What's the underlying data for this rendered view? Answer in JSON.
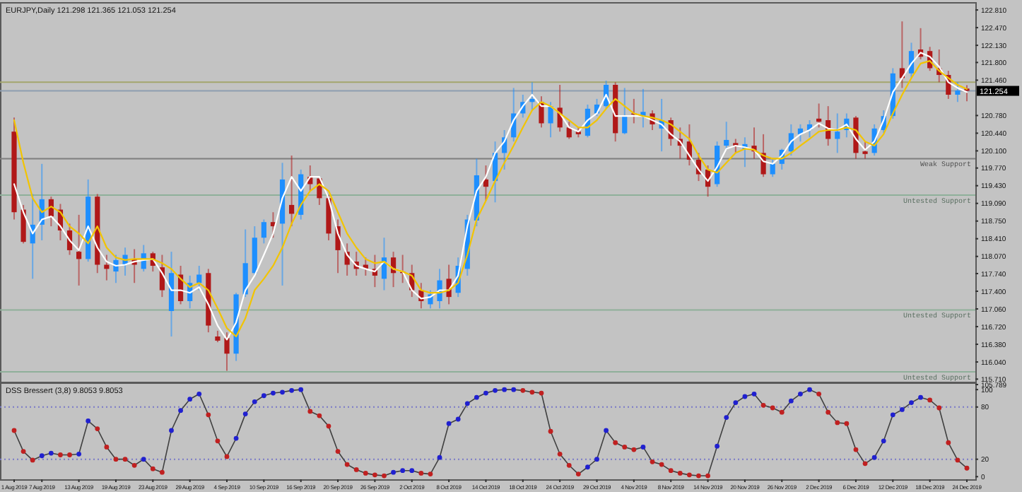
{
  "chart_data": [
    {
      "type": "candlestick",
      "title": "EURJPY,Daily 121.298 121.365 121.053 121.254",
      "tick_labels": "y",
      "categories": [
        null,
        null,
        null,
        null,
        null,
        null,
        null,
        null,
        null,
        null,
        null,
        null,
        null,
        null,
        null,
        null,
        null,
        null,
        null,
        null,
        null,
        null,
        null,
        null,
        null,
        null,
        null,
        null,
        null,
        null,
        null,
        null,
        null,
        null,
        null,
        null,
        null,
        null,
        null,
        null,
        null,
        null,
        null,
        null,
        null,
        null,
        null,
        null,
        null,
        null,
        null,
        null,
        null,
        null,
        null,
        null,
        null,
        null,
        null,
        null,
        null,
        null,
        null,
        null,
        null,
        null,
        null,
        null,
        null,
        null,
        null,
        null,
        null,
        null,
        null,
        null,
        null,
        null,
        null,
        null,
        null,
        null,
        null,
        null,
        null,
        null,
        null,
        null,
        null,
        null,
        null,
        null,
        null,
        null,
        null,
        null,
        null,
        null,
        null,
        null,
        null,
        null,
        null,
        null
      ],
      "ohlc": [
        [
          120.47,
          120.74,
          118.78,
          118.92
        ],
        [
          118.97,
          119.06,
          118.32,
          118.35
        ],
        [
          118.32,
          119.27,
          117.64,
          118.68
        ],
        [
          118.68,
          119.85,
          118.38,
          119.17
        ],
        [
          119.17,
          119.22,
          118.65,
          118.84
        ],
        [
          118.97,
          119.08,
          118.38,
          118.57
        ],
        [
          118.57,
          118.7,
          118.1,
          118.19
        ],
        [
          118.16,
          118.87,
          117.51,
          118.02
        ],
        [
          118.02,
          119.55,
          117.97,
          119.22
        ],
        [
          119.22,
          119.27,
          117.75,
          117.91
        ],
        [
          117.91,
          118.1,
          117.61,
          117.83
        ],
        [
          117.78,
          118.1,
          117.56,
          118.0
        ],
        [
          117.91,
          118.24,
          117.7,
          118.1
        ],
        [
          118.02,
          118.21,
          117.56,
          117.91
        ],
        [
          117.83,
          118.29,
          117.78,
          118.13
        ],
        [
          118.13,
          118.16,
          117.78,
          117.89
        ],
        [
          117.86,
          118.1,
          117.29,
          117.42
        ],
        [
          117.02,
          118.16,
          116.53,
          117.75
        ],
        [
          117.72,
          117.89,
          117.15,
          117.21
        ],
        [
          117.21,
          117.7,
          117.07,
          117.56
        ],
        [
          117.56,
          117.89,
          117.42,
          117.72
        ],
        [
          117.75,
          117.83,
          116.61,
          116.74
        ],
        [
          116.53,
          116.64,
          116.42,
          116.45
        ],
        [
          116.5,
          116.61,
          115.87,
          116.2
        ],
        [
          116.2,
          117.37,
          116.06,
          117.34
        ],
        [
          117.34,
          118.59,
          117.29,
          117.94
        ],
        [
          117.75,
          118.65,
          117.7,
          118.43
        ],
        [
          118.43,
          118.78,
          118.32,
          118.73
        ],
        [
          118.73,
          118.92,
          118.43,
          118.65
        ],
        [
          118.7,
          119.87,
          117.51,
          119.55
        ],
        [
          119.06,
          120.01,
          118.65,
          118.89
        ],
        [
          118.87,
          119.74,
          118.78,
          119.65
        ],
        [
          119.6,
          119.82,
          119.33,
          119.46
        ],
        [
          119.57,
          119.6,
          119.06,
          119.19
        ],
        [
          119.19,
          119.25,
          118.38,
          118.51
        ],
        [
          118.65,
          118.78,
          117.75,
          118.19
        ],
        [
          118.16,
          118.32,
          117.7,
          117.91
        ],
        [
          117.97,
          118.16,
          117.7,
          117.83
        ],
        [
          117.91,
          118.05,
          117.7,
          117.83
        ],
        [
          117.83,
          118.1,
          117.48,
          117.7
        ],
        [
          117.64,
          118.43,
          117.42,
          118.05
        ],
        [
          118.05,
          118.16,
          117.48,
          117.75
        ],
        [
          117.78,
          118.1,
          117.56,
          117.75
        ],
        [
          117.75,
          117.91,
          117.29,
          117.42
        ],
        [
          117.42,
          117.56,
          117.07,
          117.21
        ],
        [
          117.15,
          117.42,
          117.07,
          117.34
        ],
        [
          117.21,
          117.83,
          117.07,
          117.61
        ],
        [
          117.64,
          117.91,
          117.15,
          117.29
        ],
        [
          117.37,
          118.05,
          117.29,
          117.89
        ],
        [
          117.83,
          118.87,
          117.7,
          118.78
        ],
        [
          118.76,
          119.95,
          118.65,
          119.63
        ],
        [
          119.55,
          119.82,
          119.14,
          119.41
        ],
        [
          119.52,
          120.28,
          119.11,
          120.06
        ],
        [
          120.06,
          120.5,
          119.74,
          120.36
        ],
        [
          120.36,
          121.31,
          120.28,
          120.82
        ],
        [
          120.82,
          121.18,
          120.74,
          121.04
        ],
        [
          121.04,
          121.42,
          120.88,
          121.1
        ],
        [
          121.04,
          121.15,
          120.55,
          120.63
        ],
        [
          120.63,
          121.04,
          120.36,
          120.96
        ],
        [
          120.93,
          121.37,
          120.47,
          120.55
        ],
        [
          120.55,
          120.66,
          120.33,
          120.36
        ],
        [
          120.47,
          120.55,
          120.36,
          120.42
        ],
        [
          120.39,
          120.99,
          120.36,
          120.91
        ],
        [
          120.82,
          121.1,
          120.77,
          120.99
        ],
        [
          120.96,
          121.45,
          120.91,
          121.37
        ],
        [
          121.37,
          121.42,
          120.28,
          120.44
        ],
        [
          120.44,
          121.31,
          120.42,
          120.77
        ],
        [
          120.82,
          121.1,
          120.63,
          120.8
        ],
        [
          120.77,
          121.29,
          120.55,
          120.85
        ],
        [
          120.82,
          120.88,
          120.5,
          120.61
        ],
        [
          120.53,
          121.1,
          120.09,
          120.69
        ],
        [
          120.69,
          120.74,
          120.2,
          120.33
        ],
        [
          120.33,
          120.55,
          119.95,
          120.2
        ],
        [
          120.28,
          120.61,
          119.82,
          119.93
        ],
        [
          119.93,
          120.06,
          119.52,
          119.65
        ],
        [
          119.74,
          119.82,
          119.22,
          119.41
        ],
        [
          119.46,
          120.28,
          119.41,
          120.2
        ],
        [
          120.2,
          120.66,
          120.12,
          120.31
        ],
        [
          120.25,
          120.33,
          120.06,
          120.2
        ],
        [
          120.14,
          120.36,
          119.79,
          120.23
        ],
        [
          120.2,
          120.55,
          119.95,
          120.09
        ],
        [
          120.06,
          120.42,
          119.6,
          119.65
        ],
        [
          119.65,
          119.93,
          119.6,
          119.85
        ],
        [
          119.85,
          120.14,
          119.74,
          120.12
        ],
        [
          120.09,
          120.61,
          120.01,
          120.44
        ],
        [
          120.42,
          120.61,
          120.28,
          120.53
        ],
        [
          120.5,
          120.69,
          120.36,
          120.61
        ],
        [
          120.72,
          121.01,
          120.55,
          120.66
        ],
        [
          120.69,
          120.96,
          120.2,
          120.33
        ],
        [
          120.33,
          120.82,
          120.06,
          120.47
        ],
        [
          120.5,
          120.82,
          120.36,
          120.72
        ],
        [
          120.74,
          120.77,
          119.95,
          120.06
        ],
        [
          120.09,
          120.28,
          119.95,
          120.04
        ],
        [
          120.06,
          120.61,
          120.01,
          120.53
        ],
        [
          120.5,
          120.88,
          120.44,
          120.77
        ],
        [
          120.77,
          121.69,
          120.72,
          121.59
        ],
        [
          121.69,
          122.59,
          121.31,
          121.5
        ],
        [
          121.59,
          122.18,
          121.5,
          122.02
        ],
        [
          122.05,
          122.46,
          121.86,
          121.91
        ],
        [
          122.02,
          122.1,
          121.64,
          121.69
        ],
        [
          121.69,
          122.05,
          121.42,
          121.56
        ],
        [
          121.56,
          121.64,
          121.1,
          121.18
        ],
        [
          121.18,
          121.42,
          121.04,
          121.26
        ],
        [
          121.298,
          121.365,
          121.053,
          121.254
        ]
      ],
      "series": [
        {
          "type": "line",
          "color": "#ffffff",
          "values": [
            119.46,
            118.92,
            118.51,
            118.78,
            118.84,
            118.65,
            118.38,
            118.19,
            118.65,
            118.24,
            117.97,
            117.89,
            117.91,
            117.97,
            118.0,
            118.02,
            117.75,
            117.42,
            117.42,
            117.37,
            117.48,
            117.15,
            116.74,
            116.47,
            116.8,
            117.42,
            117.7,
            118.1,
            118.51,
            119.19,
            119.6,
            119.33,
            119.6,
            119.6,
            119.19,
            118.51,
            118.1,
            117.89,
            117.83,
            117.78,
            117.97,
            117.83,
            117.78,
            117.42,
            117.26,
            117.29,
            117.42,
            117.42,
            117.7,
            118.65,
            119.33,
            119.6,
            120.06,
            120.28,
            120.69,
            120.96,
            121.18,
            120.96,
            120.96,
            120.82,
            120.55,
            120.47,
            120.69,
            120.82,
            121.18,
            120.77,
            120.77,
            120.77,
            120.77,
            120.69,
            120.61,
            120.42,
            120.28,
            120.01,
            119.74,
            119.52,
            119.79,
            120.14,
            120.2,
            120.17,
            120.12,
            119.9,
            119.85,
            120.01,
            120.28,
            120.42,
            120.5,
            120.63,
            120.53,
            120.5,
            120.61,
            120.33,
            120.12,
            120.28,
            120.69,
            121.23,
            121.5,
            121.78,
            121.99,
            121.91,
            121.72,
            121.42,
            121.31,
            121.23
          ]
        },
        {
          "type": "line",
          "color": "#f2c400",
          "values": [
            120.69,
            119.87,
            119.19,
            118.92,
            119.03,
            118.92,
            118.65,
            118.51,
            118.32,
            118.65,
            118.24,
            118.05,
            118.0,
            118.02,
            118.02,
            118.02,
            117.94,
            117.83,
            117.64,
            117.48,
            117.56,
            117.42,
            117.07,
            116.69,
            116.53,
            116.88,
            117.42,
            117.64,
            117.89,
            118.24,
            118.7,
            119.06,
            119.33,
            119.46,
            119.33,
            118.92,
            118.51,
            118.24,
            118.02,
            117.94,
            117.97,
            117.83,
            117.78,
            117.7,
            117.42,
            117.37,
            117.37,
            117.42,
            117.56,
            118.1,
            118.78,
            119.14,
            119.52,
            119.87,
            120.2,
            120.55,
            120.88,
            121.04,
            120.96,
            120.82,
            120.69,
            120.55,
            120.55,
            120.69,
            120.91,
            121.1,
            120.96,
            120.82,
            120.77,
            120.74,
            120.69,
            120.61,
            120.47,
            120.33,
            120.01,
            119.74,
            119.68,
            119.87,
            120.06,
            120.14,
            120.12,
            120.01,
            119.95,
            119.95,
            120.06,
            120.2,
            120.33,
            120.47,
            120.5,
            120.5,
            120.55,
            120.5,
            120.28,
            120.2,
            120.42,
            120.82,
            121.18,
            121.5,
            121.78,
            121.83,
            121.64,
            121.5,
            121.37,
            121.29
          ]
        }
      ],
      "ylim": [
        115.66,
        122.92
      ],
      "yticks": [
        {
          "value": 122.81,
          "label": "122.810"
        },
        {
          "value": 122.47,
          "label": "122.470"
        },
        {
          "value": 122.13,
          "label": "122.130"
        },
        {
          "value": 121.8,
          "label": "121.800"
        },
        {
          "value": 121.46,
          "label": "121.460"
        },
        {
          "value": 120.78,
          "label": "120.780"
        },
        {
          "value": 120.44,
          "label": "120.440"
        },
        {
          "value": 120.1,
          "label": "120.100"
        },
        {
          "value": 119.77,
          "label": "119.770"
        },
        {
          "value": 119.43,
          "label": "119.430"
        },
        {
          "value": 119.09,
          "label": "119.090"
        },
        {
          "value": 118.75,
          "label": "118.750"
        },
        {
          "value": 118.41,
          "label": "118.410"
        },
        {
          "value": 118.07,
          "label": "118.070"
        },
        {
          "value": 117.74,
          "label": "117.740"
        },
        {
          "value": 117.4,
          "label": "117.400"
        },
        {
          "value": 117.06,
          "label": "117.060"
        },
        {
          "value": 116.72,
          "label": "116.720"
        },
        {
          "value": 116.38,
          "label": "116.380"
        },
        {
          "value": 116.04,
          "label": "116.040"
        },
        {
          "value": 115.71,
          "label": "115.710"
        }
      ],
      "ref_lines": [
        {
          "axis": "y",
          "value": 121.254,
          "label": "121.254",
          "color": "#8e9db0"
        },
        {
          "axis": "y",
          "value": 121.42,
          "color": "#a3a66e"
        },
        {
          "axis": "y",
          "value": 119.95,
          "label": "Weak Support",
          "color": "#7f7f7f"
        },
        {
          "axis": "y",
          "value": 119.25,
          "label": "Untested Support",
          "color": "#8fb09a"
        },
        {
          "axis": "y",
          "value": 117.04,
          "label": "Untested Support",
          "color": "#8fb09a"
        },
        {
          "axis": "y",
          "value": 115.85,
          "label": "Untested Support",
          "color": "#8fb09a"
        }
      ]
    },
    {
      "type": "line",
      "title": "DSS Bressert (3,8) 9.8053 9.8053",
      "marker": "circle",
      "categories": [
        "1 Aug 2019",
        null,
        null,
        "7 Aug 2019",
        null,
        null,
        null,
        "13 Aug 2019",
        null,
        null,
        null,
        "19 Aug 2019",
        null,
        null,
        null,
        "23 Aug 2019",
        null,
        null,
        null,
        "29 Aug 2019",
        null,
        null,
        null,
        "4 Sep 2019",
        null,
        null,
        null,
        "10 Sep 2019",
        null,
        null,
        null,
        "16 Sep 2019",
        null,
        null,
        null,
        "20 Sep 2019",
        null,
        null,
        null,
        "26 Sep 2019",
        null,
        null,
        null,
        "2 Oct 2019",
        null,
        null,
        null,
        "8 Oct 2019",
        null,
        null,
        null,
        "14 Oct 2019",
        null,
        null,
        null,
        "18 Oct 2019",
        null,
        null,
        null,
        "24 Oct 2019",
        null,
        null,
        null,
        "29 Oct 2019",
        null,
        null,
        null,
        "4 Nov 2019",
        null,
        null,
        null,
        "8 Nov 2019",
        null,
        null,
        null,
        "14 Nov 2019",
        null,
        null,
        null,
        "20 Nov 2019",
        null,
        null,
        null,
        "26 Nov 2019",
        null,
        null,
        null,
        "2 Dec 2019",
        null,
        null,
        null,
        "6 Dec 2019",
        null,
        null,
        null,
        "12 Dec 2019",
        null,
        null,
        null,
        "18 Dec 2019",
        null,
        null,
        null,
        "24 Dec 2019"
      ],
      "series": [
        {
          "color": "#404040",
          "values": [
            53,
            29,
            19,
            24,
            27,
            25,
            25,
            26,
            64,
            55,
            34,
            20,
            20,
            13,
            20,
            9,
            5,
            53,
            76,
            89,
            95,
            71,
            41,
            23,
            44,
            72,
            86,
            93,
            96,
            97,
            99,
            100,
            75,
            70,
            58,
            29,
            14,
            8,
            4,
            2,
            1,
            5,
            7,
            7,
            4,
            3,
            22,
            61,
            66,
            84,
            91,
            96,
            99,
            100,
            100,
            99,
            97,
            96,
            52,
            26,
            13,
            3,
            11,
            20,
            53,
            39,
            34,
            31,
            34,
            17,
            14,
            7,
            4,
            2,
            1,
            1,
            35,
            68,
            85,
            92,
            95,
            82,
            79,
            74,
            87,
            95,
            100,
            95,
            74,
            62,
            61,
            31,
            15,
            22,
            41,
            71,
            77,
            85,
            91,
            88,
            79,
            39,
            19,
            9.8053
          ],
          "colors": [
            "#c02020",
            "#c02020",
            "#c02020",
            "#2020d0",
            "#2020d0",
            "#c02020",
            "#c02020",
            "#2020d0",
            "#2020d0",
            "#c02020",
            "#c02020",
            "#c02020",
            "#c02020",
            "#c02020",
            "#2020d0",
            "#c02020",
            "#c02020",
            "#2020d0",
            "#2020d0",
            "#2020d0",
            "#2020d0",
            "#c02020",
            "#c02020",
            "#c02020",
            "#2020d0",
            "#2020d0",
            "#2020d0",
            "#2020d0",
            "#2020d0",
            "#2020d0",
            "#2020d0",
            "#2020d0",
            "#c02020",
            "#c02020",
            "#c02020",
            "#c02020",
            "#c02020",
            "#c02020",
            "#c02020",
            "#c02020",
            "#c02020",
            "#2020d0",
            "#2020d0",
            "#2020d0",
            "#c02020",
            "#c02020",
            "#2020d0",
            "#2020d0",
            "#2020d0",
            "#2020d0",
            "#2020d0",
            "#2020d0",
            "#2020d0",
            "#2020d0",
            "#2020d0",
            "#c02020",
            "#c02020",
            "#c02020",
            "#c02020",
            "#c02020",
            "#c02020",
            "#c02020",
            "#2020d0",
            "#2020d0",
            "#2020d0",
            "#c02020",
            "#c02020",
            "#c02020",
            "#2020d0",
            "#c02020",
            "#c02020",
            "#c02020",
            "#c02020",
            "#c02020",
            "#c02020",
            "#c02020",
            "#2020d0",
            "#2020d0",
            "#2020d0",
            "#2020d0",
            "#2020d0",
            "#c02020",
            "#c02020",
            "#c02020",
            "#2020d0",
            "#2020d0",
            "#2020d0",
            "#c02020",
            "#c02020",
            "#c02020",
            "#c02020",
            "#c02020",
            "#c02020",
            "#2020d0",
            "#2020d0",
            "#2020d0",
            "#2020d0",
            "#2020d0",
            "#2020d0",
            "#c02020",
            "#c02020",
            "#c02020",
            "#c02020",
            "#c02020"
          ]
        }
      ],
      "ylim": [
        -3,
        105.789
      ],
      "yticks": [
        0,
        20,
        80,
        100,
        105.789
      ],
      "ref_lines": [
        {
          "axis": "y",
          "value": 80,
          "color": "#7a7ac8",
          "line_style": "dotted"
        },
        {
          "axis": "y",
          "value": 20,
          "color": "#7a7ac8",
          "line_style": "dotted"
        }
      ]
    }
  ]
}
